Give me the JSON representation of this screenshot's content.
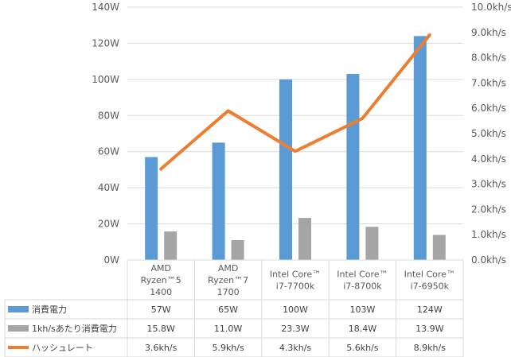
{
  "chart_data": {
    "type": "bar",
    "categories": [
      [
        "AMD",
        "Ryzen™5",
        "1400"
      ],
      [
        "AMD",
        "Ryzen™7",
        "1700"
      ],
      [
        "Intel Core™",
        "i7-7700k"
      ],
      [
        "Intel Core™",
        "i7-8700k"
      ],
      [
        "Intel Core™",
        "i7-6950k"
      ]
    ],
    "series": [
      {
        "name": "消費電力",
        "type": "bar",
        "axis": "left",
        "color": "#5B9BD5",
        "values": [
          57,
          65,
          100,
          103,
          124
        ],
        "labels": [
          "57W",
          "65W",
          "100W",
          "103W",
          "124W"
        ]
      },
      {
        "name": "1kh/sあたり消費電力",
        "type": "bar",
        "axis": "left",
        "color": "#A5A5A5",
        "values": [
          15.8,
          11.0,
          23.3,
          18.4,
          13.9
        ],
        "labels": [
          "15.8W",
          "11.0W",
          "23.3W",
          "18.4W",
          "13.9W"
        ]
      },
      {
        "name": "ハッシュレート",
        "type": "line",
        "axis": "right",
        "color": "#ED7D31",
        "values": [
          3.6,
          5.9,
          4.3,
          5.6,
          8.9
        ],
        "labels": [
          "3.6kh/s",
          "5.9kh/s",
          "4.3kh/s",
          "5.6kh/s",
          "8.9kh/s"
        ]
      }
    ],
    "y_left": {
      "min": 0,
      "max": 140,
      "step": 20,
      "ticks": [
        "0W",
        "20W",
        "40W",
        "60W",
        "80W",
        "100W",
        "120W",
        "140W"
      ]
    },
    "y_right": {
      "min": 0,
      "max": 10,
      "step": 1,
      "ticks": [
        "0.0kh/s",
        "1.0kh/s",
        "2.0kh/s",
        "3.0kh/s",
        "4.0kh/s",
        "5.0kh/s",
        "6.0kh/s",
        "7.0kh/s",
        "8.0kh/s",
        "9.0kh/s",
        "10.0kh/s"
      ]
    },
    "grid": true,
    "legend": "data-table"
  }
}
